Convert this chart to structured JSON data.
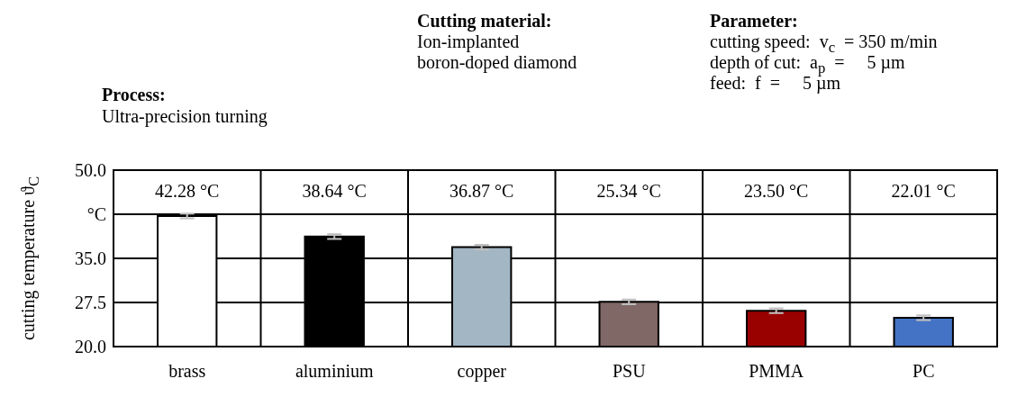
{
  "chart_data": {
    "type": "bar",
    "ylabel": "cutting temperature ϑ$_{C}$",
    "annotations": [
      "Cutting material:",
      "Ion-implanted",
      "boron-doped diamond",
      "Parameter:",
      "cutting speed:  v$_{c}$  = 350 m/min",
      "depth of cut:  a$_{p}$  =     5 µm",
      "feed:  f  =     5 µm",
      "Process:",
      "Ultra-precision turning",
      "42.28 °C",
      "38.64 °C",
      "36.87 °C",
      "25.34 °C",
      "23.50 °C",
      "22.01 °C"
    ],
    "categories": [
      "brass",
      "aluminium",
      "copper",
      "PSU",
      "PMMA",
      "PC"
    ],
    "values": [
      42.2,
      38.7,
      36.9,
      27.6,
      26.1,
      24.9
    ],
    "colors": [
      "#ffffff",
      "#000000",
      "#a2b6c4",
      "#7f6866",
      "#990000",
      "#4472c4"
    ],
    "errors": [
      0.4,
      0.4,
      0.4,
      0.4,
      0.4,
      0.4
    ],
    "ylim": [
      20,
      50
    ],
    "yticks": [
      {
        "value": 20,
        "label": "20.0"
      },
      {
        "value": 27.5,
        "label": "27.5"
      },
      {
        "value": 35,
        "label": "35.0"
      },
      {
        "value": 42.5,
        "label": "°C"
      },
      {
        "value": 50,
        "label": "50.0"
      }
    ],
    "grid": "y"
  }
}
